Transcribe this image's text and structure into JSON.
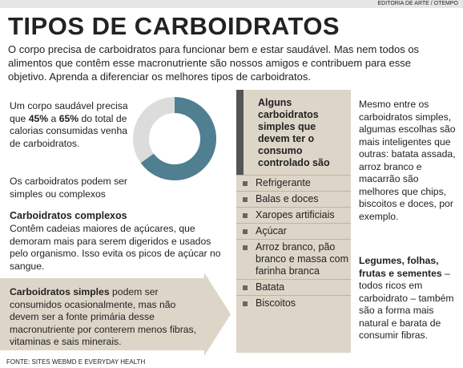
{
  "header": {
    "credit": "EDITORIA DE ARTE / OTEMPO",
    "title": "TIPOS DE CARBOIDRATOS",
    "intro": "O corpo precisa de carboidratos para funcionar bem e estar saudável. Mas nem todos os alimentos que contêm esse macronutriente são nossos amigos e contribuem para esse objetivo. Aprenda a diferenciar os melhores tipos de carboidratos."
  },
  "left": {
    "lead_before": "Um corpo saudável precisa que",
    "low": "45%",
    "between": "a",
    "high": "65%",
    "lead_after": "do total de calorias consumidas venha de carboidratos.",
    "types_note": "Os carboidratos podem ser simples ou complexos",
    "complex_title": "Carboidratos complexos",
    "complex_text": "Contêm cadeias maiores de açúcares, que demoram mais para serem digeridos e usados pelo organismo. Isso evita os picos de açúcar no sangue."
  },
  "donut": {
    "value": 65
  },
  "simple": {
    "title": "Carboidratos simples",
    "text": "podem ser consumidos ocasionalmente, mas não devem ser a fonte primária desse macronutriente por conterem menos fibras, vitaminas e sais minerais."
  },
  "box": {
    "title": "Alguns carboidratos simples que devem ter o consumo controlado são",
    "items": [
      "Refrigerante",
      "Balas e doces",
      "Xaropes artificiais",
      "Açúcar",
      "Arroz branco, pão branco e massa com farinha branca",
      "Batata",
      "Biscoitos"
    ]
  },
  "right": {
    "text1": "Mesmo entre os carboidratos simples, algumas escolhas são mais inteligentes que outras: batata assada, arroz branco e macarrão são melhores que chips, biscoitos e doces, por exemplo.",
    "title": "Legumes, folhas, frutas e sementes",
    "text2": "– todos ricos em carboidrato – também são a forma mais natural e barata de consumir fibras."
  },
  "source": "FONTE: SITES WEBMD E EVERYDAY HEALTH"
}
